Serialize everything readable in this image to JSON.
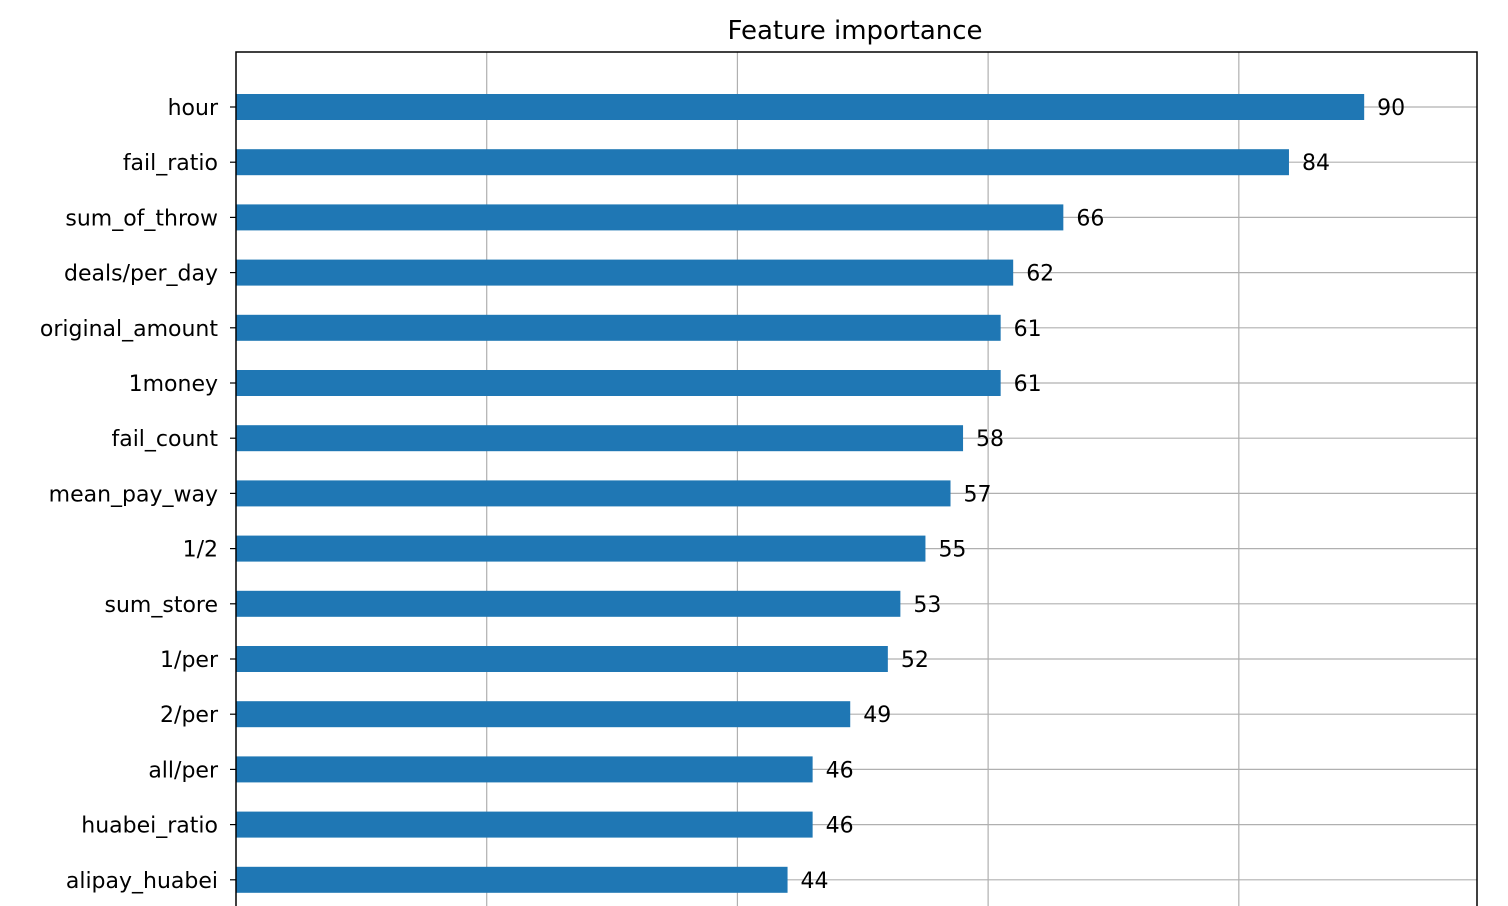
{
  "chart_data": {
    "type": "bar",
    "orientation": "horizontal",
    "title": "Feature importance",
    "xlabel": "",
    "ylabel": "",
    "categories": [
      "hour",
      "fail_ratio",
      "sum_of_throw",
      "deals/per_day",
      "original_amount",
      "1money",
      "fail_count",
      "mean_pay_way",
      "1/2",
      "sum_store",
      "1/per",
      "2/per",
      "all/per",
      "huabei_ratio",
      "alipay_huabei"
    ],
    "values": [
      90,
      84,
      66,
      62,
      61,
      61,
      58,
      57,
      55,
      53,
      52,
      49,
      46,
      46,
      44
    ],
    "value_labels": [
      "90",
      "84",
      "66",
      "62",
      "61",
      "61",
      "58",
      "57",
      "55",
      "53",
      "52",
      "49",
      "46",
      "46",
      "44"
    ],
    "xlim": [
      0,
      99
    ],
    "grid": true,
    "bar_color": "#1f77b4"
  }
}
